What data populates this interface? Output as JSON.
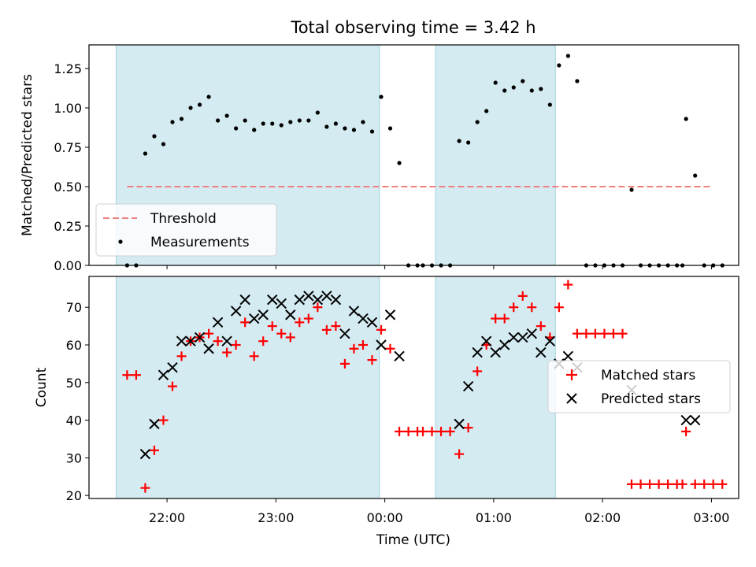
{
  "chart_data": [
    {
      "type": "scatter",
      "title": "Total observing time = 3.42 h",
      "xlabel": "",
      "ylabel": "Matched/Predicted stars",
      "ylim": [
        0,
        1.4
      ],
      "xlim": [
        "21:17",
        "03:15"
      ],
      "yticks": [
        "0.00",
        "0.25",
        "0.50",
        "0.75",
        "1.00",
        "1.25"
      ],
      "ytick_values": [
        0,
        0.25,
        0.5,
        0.75,
        1.0,
        1.25
      ],
      "legend_position": "lower-left",
      "shaded_intervals": [
        [
          "21:32",
          "23:57"
        ],
        [
          "00:28",
          "01:34"
        ]
      ],
      "threshold": {
        "name": "Threshold",
        "value": 0.5,
        "x_range": [
          "21:38",
          "03:00"
        ],
        "color": "#f08080"
      },
      "series": [
        {
          "name": "Measurements",
          "color": "#000000",
          "points": [
            [
              "21:38",
              0.0
            ],
            [
              "21:43",
              0.0
            ],
            [
              "21:48",
              0.71
            ],
            [
              "21:53",
              0.82
            ],
            [
              "21:58",
              0.77
            ],
            [
              "22:03",
              0.91
            ],
            [
              "22:08",
              0.93
            ],
            [
              "22:13",
              1.0
            ],
            [
              "22:18",
              1.02
            ],
            [
              "22:23",
              1.07
            ],
            [
              "22:28",
              0.92
            ],
            [
              "22:33",
              0.95
            ],
            [
              "22:38",
              0.87
            ],
            [
              "22:43",
              0.92
            ],
            [
              "22:48",
              0.86
            ],
            [
              "22:53",
              0.9
            ],
            [
              "22:58",
              0.9
            ],
            [
              "23:03",
              0.89
            ],
            [
              "23:08",
              0.91
            ],
            [
              "23:13",
              0.92
            ],
            [
              "23:18",
              0.92
            ],
            [
              "23:23",
              0.97
            ],
            [
              "23:28",
              0.88
            ],
            [
              "23:33",
              0.9
            ],
            [
              "23:38",
              0.87
            ],
            [
              "23:43",
              0.86
            ],
            [
              "23:48",
              0.91
            ],
            [
              "23:53",
              0.85
            ],
            [
              "23:58",
              1.07
            ],
            [
              "00:03",
              0.87
            ],
            [
              "00:08",
              0.65
            ],
            [
              "00:13",
              0.0
            ],
            [
              "00:18",
              0.0
            ],
            [
              "00:21",
              0.0
            ],
            [
              "00:26",
              0.0
            ],
            [
              "00:31",
              0.0
            ],
            [
              "00:36",
              0.0
            ],
            [
              "00:41",
              0.79
            ],
            [
              "00:46",
              0.78
            ],
            [
              "00:51",
              0.91
            ],
            [
              "00:56",
              0.98
            ],
            [
              "01:01",
              1.16
            ],
            [
              "01:06",
              1.11
            ],
            [
              "01:11",
              1.13
            ],
            [
              "01:16",
              1.17
            ],
            [
              "01:21",
              1.11
            ],
            [
              "01:26",
              1.12
            ],
            [
              "01:31",
              1.02
            ],
            [
              "01:36",
              1.27
            ],
            [
              "01:41",
              1.33
            ],
            [
              "01:46",
              1.17
            ],
            [
              "01:51",
              0.0
            ],
            [
              "01:56",
              0.0
            ],
            [
              "02:01",
              0.0
            ],
            [
              "02:06",
              0.0
            ],
            [
              "02:11",
              0.0
            ],
            [
              "02:16",
              0.48
            ],
            [
              "02:21",
              0.0
            ],
            [
              "02:26",
              0.0
            ],
            [
              "02:31",
              0.0
            ],
            [
              "02:36",
              0.0
            ],
            [
              "02:41",
              0.0
            ],
            [
              "02:44",
              0.0
            ],
            [
              "02:46",
              0.93
            ],
            [
              "02:51",
              0.57
            ],
            [
              "02:56",
              0.0
            ],
            [
              "03:01",
              0.0
            ],
            [
              "03:06",
              0.0
            ]
          ]
        }
      ]
    },
    {
      "type": "scatter",
      "title": "",
      "xlabel": "Time (UTC)",
      "ylabel": "Count",
      "ylim": [
        19.2,
        78.2
      ],
      "xlim": [
        "21:17",
        "03:15"
      ],
      "yticks": [
        "20",
        "30",
        "40",
        "50",
        "60",
        "70"
      ],
      "ytick_values": [
        20,
        30,
        40,
        50,
        60,
        70
      ],
      "xticks": [
        "22:00",
        "23:00",
        "00:00",
        "01:00",
        "02:00",
        "03:00"
      ],
      "legend_position": "right",
      "shaded_intervals": [
        [
          "21:32",
          "23:57"
        ],
        [
          "00:28",
          "01:34"
        ]
      ],
      "series": [
        {
          "name": "Matched stars",
          "marker": "plus",
          "color": "#ff0000",
          "points": [
            [
              "21:38",
              52
            ],
            [
              "21:43",
              52
            ],
            [
              "21:48",
              22
            ],
            [
              "21:53",
              32
            ],
            [
              "21:58",
              40
            ],
            [
              "22:03",
              49
            ],
            [
              "22:08",
              57
            ],
            [
              "22:13",
              61
            ],
            [
              "22:18",
              62
            ],
            [
              "22:23",
              63
            ],
            [
              "22:28",
              61
            ],
            [
              "22:33",
              58
            ],
            [
              "22:38",
              60
            ],
            [
              "22:43",
              66
            ],
            [
              "22:48",
              57
            ],
            [
              "22:53",
              61
            ],
            [
              "22:58",
              65
            ],
            [
              "23:03",
              63
            ],
            [
              "23:08",
              62
            ],
            [
              "23:13",
              66
            ],
            [
              "23:18",
              67
            ],
            [
              "23:23",
              70
            ],
            [
              "23:28",
              64
            ],
            [
              "23:33",
              65
            ],
            [
              "23:38",
              55
            ],
            [
              "23:43",
              59
            ],
            [
              "23:48",
              60
            ],
            [
              "23:53",
              56
            ],
            [
              "23:58",
              64
            ],
            [
              "00:03",
              59
            ],
            [
              "00:08",
              37
            ],
            [
              "00:13",
              37
            ],
            [
              "00:18",
              37
            ],
            [
              "00:21",
              37
            ],
            [
              "00:26",
              37
            ],
            [
              "00:31",
              37
            ],
            [
              "00:36",
              37
            ],
            [
              "00:41",
              31
            ],
            [
              "00:46",
              38
            ],
            [
              "00:51",
              53
            ],
            [
              "00:56",
              60
            ],
            [
              "01:01",
              67
            ],
            [
              "01:06",
              67
            ],
            [
              "01:11",
              70
            ],
            [
              "01:16",
              73
            ],
            [
              "01:21",
              70
            ],
            [
              "01:26",
              65
            ],
            [
              "01:31",
              62
            ],
            [
              "01:36",
              70
            ],
            [
              "01:41",
              76
            ],
            [
              "01:46",
              63
            ],
            [
              "01:51",
              63
            ],
            [
              "01:56",
              63
            ],
            [
              "02:01",
              63
            ],
            [
              "02:06",
              63
            ],
            [
              "02:11",
              63
            ],
            [
              "02:16",
              23
            ],
            [
              "02:21",
              23
            ],
            [
              "02:26",
              23
            ],
            [
              "02:31",
              23
            ],
            [
              "02:36",
              23
            ],
            [
              "02:41",
              23
            ],
            [
              "02:44",
              23
            ],
            [
              "02:46",
              37
            ],
            [
              "02:51",
              23
            ],
            [
              "02:56",
              23
            ],
            [
              "03:01",
              23
            ],
            [
              "03:06",
              23
            ]
          ]
        },
        {
          "name": "Predicted stars",
          "marker": "x",
          "color": "#000000",
          "points": [
            [
              "21:48",
              31
            ],
            [
              "21:53",
              39
            ],
            [
              "21:58",
              52
            ],
            [
              "22:03",
              54
            ],
            [
              "22:08",
              61
            ],
            [
              "22:13",
              61
            ],
            [
              "22:18",
              62
            ],
            [
              "22:23",
              59
            ],
            [
              "22:28",
              66
            ],
            [
              "22:33",
              61
            ],
            [
              "22:38",
              69
            ],
            [
              "22:43",
              72
            ],
            [
              "22:48",
              67
            ],
            [
              "22:53",
              68
            ],
            [
              "22:58",
              72
            ],
            [
              "23:03",
              71
            ],
            [
              "23:08",
              68
            ],
            [
              "23:13",
              72
            ],
            [
              "23:18",
              73
            ],
            [
              "23:23",
              72
            ],
            [
              "23:28",
              73
            ],
            [
              "23:33",
              72
            ],
            [
              "23:38",
              63
            ],
            [
              "23:43",
              69
            ],
            [
              "23:48",
              67
            ],
            [
              "23:53",
              66
            ],
            [
              "23:58",
              60
            ],
            [
              "00:03",
              68
            ],
            [
              "00:08",
              57
            ],
            [
              "00:41",
              39
            ],
            [
              "00:46",
              49
            ],
            [
              "00:51",
              58
            ],
            [
              "00:56",
              61
            ],
            [
              "01:01",
              58
            ],
            [
              "01:06",
              60
            ],
            [
              "01:11",
              62
            ],
            [
              "01:16",
              62
            ],
            [
              "01:21",
              63
            ],
            [
              "01:26",
              58
            ],
            [
              "01:31",
              61
            ],
            [
              "01:36",
              55
            ],
            [
              "01:41",
              57
            ],
            [
              "01:46",
              54
            ],
            [
              "02:16",
              48
            ],
            [
              "02:46",
              40
            ],
            [
              "02:51",
              40
            ]
          ]
        }
      ]
    }
  ]
}
